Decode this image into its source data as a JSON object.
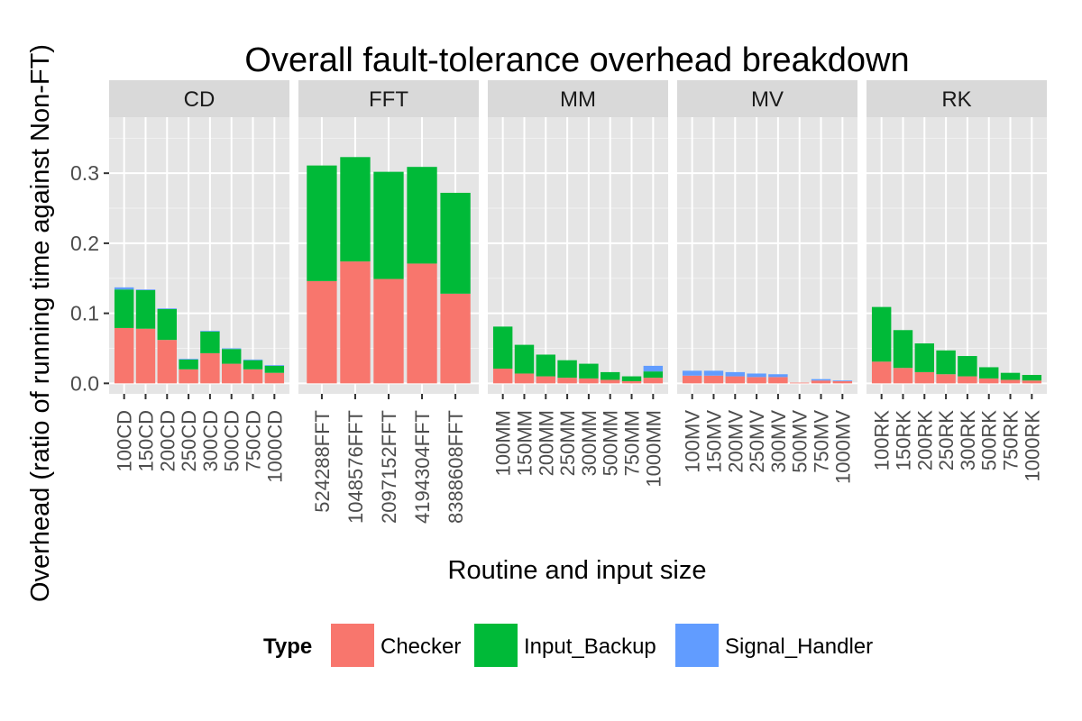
{
  "chart_data": {
    "type": "bar",
    "stacked": true,
    "faceted": true,
    "title": "Overall fault-tolerance overhead breakdown",
    "xlabel": "Routine and input size",
    "ylabel": "Overhead (ratio of running time against Non-FT)",
    "ylim": [
      -0.015,
      0.38
    ],
    "yticks": [
      0.0,
      0.1,
      0.2,
      0.3
    ],
    "ytick_labels": [
      "0.0",
      "0.1",
      "0.2",
      "0.3"
    ],
    "grid": true,
    "legend": {
      "title": "Type",
      "position": "bottom"
    },
    "series": [
      {
        "name": "Checker",
        "color": "#F8766D"
      },
      {
        "name": "Input_Backup",
        "color": "#00BA38"
      },
      {
        "name": "Signal_Handler",
        "color": "#619CFF"
      }
    ],
    "panels": [
      {
        "name": "CD",
        "categories": [
          "100CD",
          "150CD",
          "200CD",
          "250CD",
          "300CD",
          "500CD",
          "750CD",
          "1000CD"
        ],
        "values": {
          "Checker": [
            0.079,
            0.078,
            0.062,
            0.02,
            0.043,
            0.028,
            0.02,
            0.015
          ],
          "Input_Backup": [
            0.055,
            0.055,
            0.044,
            0.014,
            0.031,
            0.021,
            0.013,
            0.01
          ],
          "Signal_Handler": [
            0.003,
            0.001,
            0.001,
            0.001,
            0.001,
            0.001,
            0.001,
            0.001
          ]
        }
      },
      {
        "name": "FFT",
        "categories": [
          "524288FFT",
          "1048576FFT",
          "2097152FFT",
          "4194304FFT",
          "8388608FFT"
        ],
        "values": {
          "Checker": [
            0.146,
            0.174,
            0.149,
            0.171,
            0.128
          ],
          "Input_Backup": [
            0.165,
            0.149,
            0.153,
            0.138,
            0.144
          ],
          "Signal_Handler": [
            0.0,
            0.0,
            0.0,
            0.0,
            0.0
          ]
        }
      },
      {
        "name": "MM",
        "categories": [
          "100MM",
          "150MM",
          "200MM",
          "250MM",
          "300MM",
          "500MM",
          "750MM",
          "1000MM"
        ],
        "values": {
          "Checker": [
            0.021,
            0.014,
            0.01,
            0.008,
            0.007,
            0.005,
            0.003,
            0.008
          ],
          "Input_Backup": [
            0.06,
            0.041,
            0.031,
            0.025,
            0.021,
            0.011,
            0.007,
            0.009
          ],
          "Signal_Handler": [
            0.0,
            0.0,
            0.0,
            0.0,
            0.0,
            0.0,
            0.0,
            0.008
          ]
        }
      },
      {
        "name": "MV",
        "categories": [
          "100MV",
          "150MV",
          "200MV",
          "250MV",
          "300MV",
          "500MV",
          "750MV",
          "1000MV"
        ],
        "values": {
          "Checker": [
            0.011,
            0.011,
            0.01,
            0.009,
            0.009,
            0.001,
            0.004,
            0.003
          ],
          "Input_Backup": [
            0.0,
            0.0,
            0.0,
            0.0,
            0.0,
            0.0,
            0.0,
            0.0
          ],
          "Signal_Handler": [
            0.007,
            0.007,
            0.006,
            0.005,
            0.004,
            0.0,
            0.002,
            0.001
          ]
        }
      },
      {
        "name": "RK",
        "categories": [
          "100RK",
          "150RK",
          "200RK",
          "250RK",
          "300RK",
          "500RK",
          "750RK",
          "1000RK"
        ],
        "values": {
          "Checker": [
            0.031,
            0.022,
            0.016,
            0.013,
            0.01,
            0.007,
            0.005,
            0.004
          ],
          "Input_Backup": [
            0.078,
            0.054,
            0.041,
            0.034,
            0.029,
            0.016,
            0.01,
            0.008
          ],
          "Signal_Handler": [
            0.0,
            0.0,
            0.0,
            0.0,
            0.0,
            0.0,
            0.0,
            0.0
          ]
        }
      }
    ]
  }
}
